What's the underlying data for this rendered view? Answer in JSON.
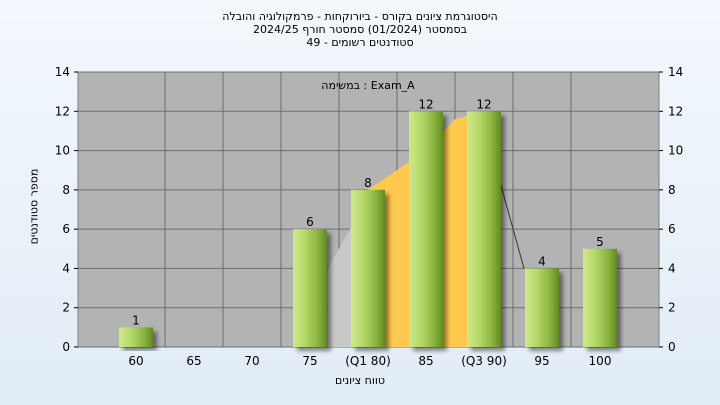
{
  "title_lines": [
    "היסטוגרמת ציונים בקורס - ביורוקחות - פרמקולוגיה והובלה",
    "בסמסטר  (01/2024)  סמסטר חורף 2024/25",
    "סטודנטים רשומים - 49"
  ],
  "annotation": "במשימה : Exam_A",
  "chart_data": {
    "type": "bar",
    "categories": [
      "60",
      "65",
      "70",
      "75",
      "(Q1 80)",
      "85",
      "(Q3 90)",
      "95",
      "100"
    ],
    "values": [
      1,
      0,
      0,
      6,
      8,
      12,
      12,
      4,
      5
    ],
    "data_labels": [
      "1",
      "",
      "",
      "6",
      "8",
      "12",
      "12",
      "4",
      "5"
    ],
    "ylabel": "מספר סטודנטים",
    "xlabel": "טווח ציונים",
    "ylim": [
      0,
      14
    ],
    "yticks": [
      0,
      2,
      4,
      6,
      8,
      10,
      12,
      14
    ],
    "grid": true,
    "colors": {
      "bar_light": "#d9ef9a",
      "bar_mid": "#9ac24a",
      "bar_dark": "#5f8a22",
      "plot_bg": "#b3b3b3",
      "area_gray": "#c8c8c8",
      "area_yellow": "#ffc94d"
    }
  }
}
